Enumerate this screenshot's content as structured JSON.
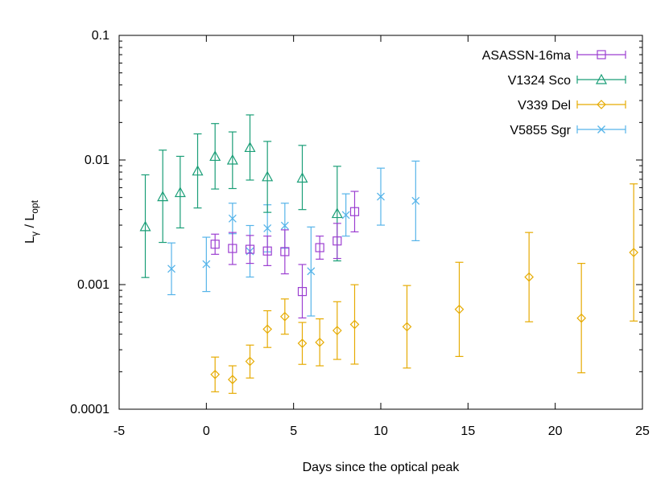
{
  "chart_data": {
    "type": "scatter",
    "title": "",
    "xlabel": "Days since the optical peak",
    "ylabel": {
      "base": "L",
      "sub1": "γ",
      "mid": " / L",
      "sub2": "opt"
    },
    "xlim": [
      -5,
      25
    ],
    "ylim": [
      0.0001,
      0.1
    ],
    "yscale": "log",
    "xticks": [
      -5,
      0,
      5,
      10,
      15,
      20,
      25
    ],
    "yticks": [
      {
        "value": 0.0001,
        "label": "0.0001"
      },
      {
        "value": 0.001,
        "label": "0.001"
      },
      {
        "value": 0.01,
        "label": "0.01"
      },
      {
        "value": 0.1,
        "label": "0.1"
      }
    ],
    "grid": false,
    "legend_position": "top-right",
    "series": [
      {
        "name": "ASASSN-16ma",
        "color": "#9c3fd1",
        "marker": "square",
        "points": [
          {
            "x": 0.5,
            "y": 0.00211,
            "lo": 0.00175,
            "hi": 0.00254
          },
          {
            "x": 1.5,
            "y": 0.00195,
            "lo": 0.00145,
            "hi": 0.00262
          },
          {
            "x": 2.5,
            "y": 0.00192,
            "lo": 0.00148,
            "hi": 0.00248
          },
          {
            "x": 3.5,
            "y": 0.00186,
            "lo": 0.00142,
            "hi": 0.00245
          },
          {
            "x": 4.5,
            "y": 0.00184,
            "lo": 0.00122,
            "hi": 0.00275
          },
          {
            "x": 5.5,
            "y": 0.00088,
            "lo": 0.00054,
            "hi": 0.00145
          },
          {
            "x": 6.5,
            "y": 0.00198,
            "lo": 0.0016,
            "hi": 0.00245
          },
          {
            "x": 7.5,
            "y": 0.00224,
            "lo": 0.00162,
            "hi": 0.0031
          },
          {
            "x": 8.5,
            "y": 0.00385,
            "lo": 0.00265,
            "hi": 0.0056
          }
        ]
      },
      {
        "name": "V1324 Sco",
        "color": "#1a9e77",
        "marker": "triangle",
        "points": [
          {
            "x": -3.5,
            "y": 0.00292,
            "lo": 0.00114,
            "hi": 0.0076
          },
          {
            "x": -2.5,
            "y": 0.00508,
            "lo": 0.00218,
            "hi": 0.012
          },
          {
            "x": -1.5,
            "y": 0.00548,
            "lo": 0.00285,
            "hi": 0.0107
          },
          {
            "x": -0.5,
            "y": 0.00816,
            "lo": 0.00412,
            "hi": 0.0162
          },
          {
            "x": 0.5,
            "y": 0.0107,
            "lo": 0.00585,
            "hi": 0.0196
          },
          {
            "x": 1.5,
            "y": 0.01,
            "lo": 0.0059,
            "hi": 0.0168
          },
          {
            "x": 2.5,
            "y": 0.0126,
            "lo": 0.0069,
            "hi": 0.023
          },
          {
            "x": 3.5,
            "y": 0.00734,
            "lo": 0.0038,
            "hi": 0.0141
          },
          {
            "x": 5.5,
            "y": 0.00716,
            "lo": 0.004,
            "hi": 0.0131
          },
          {
            "x": 7.5,
            "y": 0.00372,
            "lo": 0.00155,
            "hi": 0.0089
          }
        ]
      },
      {
        "name": "V339 Del",
        "color": "#e6ab02",
        "marker": "diamond",
        "points": [
          {
            "x": 0.5,
            "y": 0.00019,
            "lo": 0.000138,
            "hi": 0.000262
          },
          {
            "x": 1.5,
            "y": 0.000173,
            "lo": 0.000134,
            "hi": 0.000223
          },
          {
            "x": 2.5,
            "y": 0.000242,
            "lo": 0.000178,
            "hi": 0.000327
          },
          {
            "x": 3.5,
            "y": 0.000439,
            "lo": 0.000313,
            "hi": 0.000617
          },
          {
            "x": 4.5,
            "y": 0.000554,
            "lo": 0.0004,
            "hi": 0.000767
          },
          {
            "x": 5.5,
            "y": 0.000338,
            "lo": 0.000229,
            "hi": 0.000497
          },
          {
            "x": 6.5,
            "y": 0.000344,
            "lo": 0.000223,
            "hi": 0.000531
          },
          {
            "x": 7.5,
            "y": 0.000428,
            "lo": 0.000251,
            "hi": 0.000729
          },
          {
            "x": 8.5,
            "y": 0.000479,
            "lo": 0.00023,
            "hi": 0.000998
          },
          {
            "x": 11.5,
            "y": 0.000459,
            "lo": 0.000214,
            "hi": 0.000983
          },
          {
            "x": 14.5,
            "y": 0.000633,
            "lo": 0.000265,
            "hi": 0.00151
          },
          {
            "x": 18.5,
            "y": 0.00115,
            "lo": 0.000503,
            "hi": 0.00262
          },
          {
            "x": 21.5,
            "y": 0.000538,
            "lo": 0.000196,
            "hi": 0.00148
          },
          {
            "x": 24.5,
            "y": 0.00181,
            "lo": 0.00051,
            "hi": 0.00643
          }
        ]
      },
      {
        "name": "V5855 Sgr",
        "color": "#56b4e9",
        "marker": "x",
        "points": [
          {
            "x": -2.0,
            "y": 0.00134,
            "lo": 0.00083,
            "hi": 0.00216
          },
          {
            "x": 0.0,
            "y": 0.00146,
            "lo": 0.00088,
            "hi": 0.0024
          },
          {
            "x": 1.5,
            "y": 0.00339,
            "lo": 0.00256,
            "hi": 0.0045
          },
          {
            "x": 2.5,
            "y": 0.00185,
            "lo": 0.00115,
            "hi": 0.00298
          },
          {
            "x": 3.5,
            "y": 0.00283,
            "lo": 0.00183,
            "hi": 0.00437
          },
          {
            "x": 4.5,
            "y": 0.00297,
            "lo": 0.00196,
            "hi": 0.0045
          },
          {
            "x": 6.0,
            "y": 0.00128,
            "lo": 0.00056,
            "hi": 0.0029
          },
          {
            "x": 8.0,
            "y": 0.00362,
            "lo": 0.00245,
            "hi": 0.00535
          },
          {
            "x": 10.0,
            "y": 0.00508,
            "lo": 0.003,
            "hi": 0.0086
          },
          {
            "x": 12.0,
            "y": 0.0047,
            "lo": 0.00225,
            "hi": 0.0098
          }
        ]
      }
    ]
  }
}
